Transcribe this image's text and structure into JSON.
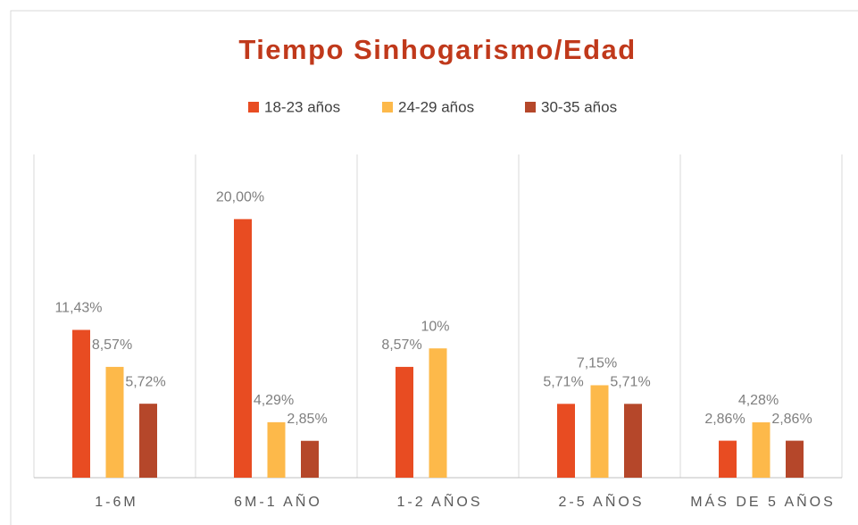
{
  "chart_data": {
    "type": "bar",
    "title": "Tiempo Sinhogarismo/Edad",
    "categories": [
      "1-6M",
      "6M-1 AÑO",
      "1-2 AÑOS",
      "2-5 AÑOS",
      "MÁS DE 5 AÑOS"
    ],
    "series": [
      {
        "name": "18-23 años",
        "color": "#e84c22",
        "values": [
          11.43,
          20.0,
          8.57,
          5.71,
          2.86
        ],
        "value_labels": [
          "11,43%",
          "20,00%",
          "8,57%",
          "5,71%",
          "2,86%"
        ]
      },
      {
        "name": "24-29 años",
        "color": "#fdb94a",
        "values": [
          8.57,
          4.29,
          10,
          7.15,
          4.28
        ],
        "value_labels": [
          "8,57%",
          "4,29%",
          "10%",
          "7,15%",
          "4,28%"
        ]
      },
      {
        "name": "30-35 años",
        "color": "#b5472a",
        "values": [
          5.72,
          2.85,
          null,
          5.71,
          2.86
        ],
        "value_labels": [
          "5,72%",
          "2,85%",
          null,
          "5,71%",
          "2,86%"
        ]
      }
    ],
    "ylim": [
      0,
      25
    ],
    "legend": "top"
  }
}
